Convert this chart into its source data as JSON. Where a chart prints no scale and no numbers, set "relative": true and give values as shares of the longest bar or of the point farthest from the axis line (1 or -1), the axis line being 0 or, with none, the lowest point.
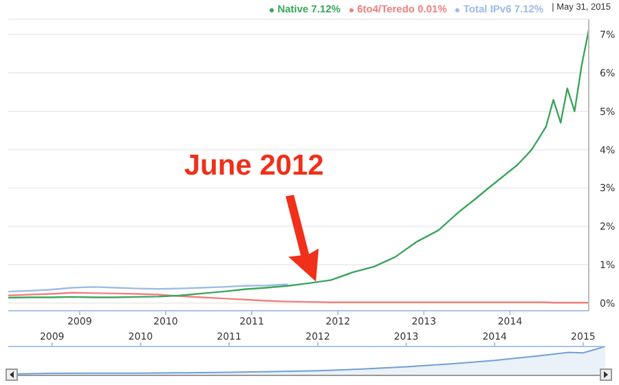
{
  "chart_data": [
    {
      "type": "line",
      "x": [
        "2008-09",
        "2008-12",
        "2009-03",
        "2009-06",
        "2009-09",
        "2009-12",
        "2010-03",
        "2010-06",
        "2010-09",
        "2010-12",
        "2011-03",
        "2011-06",
        "2011-09",
        "2011-12",
        "2012-03",
        "2012-06",
        "2012-09",
        "2012-12",
        "2013-03",
        "2013-06",
        "2013-09",
        "2013-12",
        "2014-02",
        "2014-04",
        "2014-06",
        "2014-08",
        "2014-09",
        "2014-10",
        "2014-11",
        "2014-12",
        "2015-01",
        "2015-02",
        "2015-03",
        "2015-04",
        "2015-05",
        "2015-05-31"
      ],
      "series": [
        {
          "name": "Total IPv6 7.12%",
          "color": "#9dbbe6",
          "values": [
            0.3,
            0.32,
            0.35,
            0.4,
            0.42,
            0.4,
            0.38,
            0.37,
            0.38,
            0.4,
            0.42,
            0.45,
            0.46,
            0.49,
            null,
            null,
            null,
            null,
            null,
            null,
            null,
            null,
            null,
            null,
            null,
            null,
            null,
            null,
            null,
            null,
            null,
            null,
            null,
            null,
            null,
            null
          ]
        },
        {
          "name": "6to4/Teredo 0.01%",
          "color": "#f08080",
          "values": [
            0.2,
            0.22,
            0.24,
            0.27,
            0.26,
            0.25,
            0.24,
            0.22,
            0.18,
            0.15,
            0.12,
            0.09,
            0.06,
            0.04,
            0.03,
            0.02,
            0.02,
            0.02,
            0.02,
            0.02,
            0.02,
            0.02,
            0.02,
            0.02,
            0.02,
            0.02,
            0.02,
            0.02,
            0.02,
            0.02,
            0.01,
            0.01,
            0.01,
            0.01,
            0.01,
            0.01
          ]
        },
        {
          "name": "Native 7.12%",
          "color": "#3aa55c",
          "values": [
            0.14,
            0.15,
            0.15,
            0.16,
            0.15,
            0.15,
            0.16,
            0.17,
            0.2,
            0.25,
            0.3,
            0.36,
            0.4,
            0.45,
            0.52,
            0.6,
            0.8,
            0.95,
            1.2,
            1.6,
            1.9,
            2.4,
            2.7,
            3.0,
            3.3,
            3.6,
            3.8,
            4.0,
            4.3,
            4.6,
            5.3,
            4.7,
            5.6,
            5.0,
            6.2,
            7.12
          ]
        }
      ],
      "ylim": [
        -0.2,
        7.4
      ],
      "yticks": [
        {
          "value": 0,
          "label": "0%"
        },
        {
          "value": 1,
          "label": "1%"
        },
        {
          "value": 2,
          "label": "2%"
        },
        {
          "value": 3,
          "label": "3%"
        },
        {
          "value": 4,
          "label": "4%"
        },
        {
          "value": 5,
          "label": "5%"
        },
        {
          "value": 6,
          "label": "6%"
        },
        {
          "value": 7,
          "label": "7%"
        }
      ],
      "xlim": [
        "2008-09",
        "2015-05-31"
      ],
      "xticks": [
        {
          "value": "2009-07-01",
          "label": "2009"
        },
        {
          "value": "2010-07-01",
          "label": "2010"
        },
        {
          "value": "2011-07-01",
          "label": "2011"
        },
        {
          "value": "2012-07-01",
          "label": "2012"
        },
        {
          "value": "2013-07-01",
          "label": "2013"
        },
        {
          "value": "2014-07-01",
          "label": "2014"
        }
      ],
      "grid": "y",
      "legend": "top right",
      "marker": "none",
      "annotations": [
        "June 2012",
        "| May 31, 2015"
      ]
    },
    {
      "type": "area",
      "relative": true,
      "x": [
        "2008-09",
        "2009-03",
        "2009-09",
        "2010-03",
        "2010-09",
        "2011-03",
        "2011-09",
        "2012-03",
        "2012-09",
        "2013-03",
        "2013-09",
        "2014-03",
        "2014-09",
        "2015-01",
        "2015-03",
        "2015-05-31"
      ],
      "series": [
        {
          "color": "#6f9fd8",
          "values": [
            0.05,
            0.07,
            0.08,
            0.08,
            0.09,
            0.11,
            0.13,
            0.16,
            0.22,
            0.3,
            0.4,
            0.52,
            0.68,
            0.8,
            0.78,
            1
          ]
        }
      ],
      "xlim": [
        "2008-09",
        "2015-05-31"
      ],
      "xticks": [
        {
          "value": "2009-03-01",
          "label": "2009"
        },
        {
          "value": "2010-03-01",
          "label": "2010"
        },
        {
          "value": "2011-03-01",
          "label": "2011"
        },
        {
          "value": "2012-03-01",
          "label": "2012"
        },
        {
          "value": "2013-03-01",
          "label": "2013"
        },
        {
          "value": "2014-03-01",
          "label": "2014"
        },
        {
          "value": "2015-03-01",
          "label": "2015"
        }
      ]
    }
  ]
}
